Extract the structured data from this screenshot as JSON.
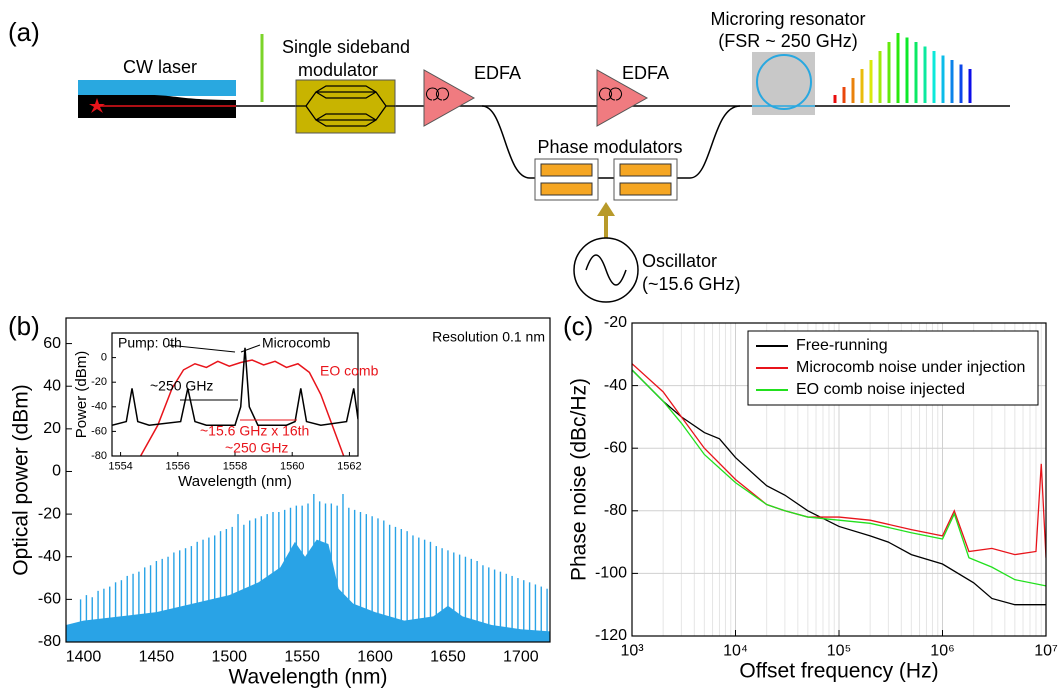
{
  "diagram": {
    "panel_label": "(a)",
    "cw_laser": "CW laser",
    "ssb_lines": [
      "Single sideband",
      "modulator"
    ],
    "edfa_1": "EDFA",
    "edfa_2": "EDFA",
    "microring_lines": [
      "Microring resonator",
      "(FSR ~ 250 GHz)"
    ],
    "phase_modulators": "Phase modulators",
    "oscillator_lines": [
      "Oscillator",
      "(~15.6 GHz)"
    ]
  },
  "chart_data": [
    {
      "type": "comb",
      "panel_label": "(b)",
      "x_label": "Wavelength (nm)",
      "y_label": "Optical power (dBm)",
      "annotations": [
        {
          "text": "Resolution 0.1 nm",
          "color": "#000000"
        }
      ],
      "xlim": [
        1388,
        1720
      ],
      "ylim": [
        -80,
        72
      ],
      "xticks": [
        1400,
        1450,
        1500,
        1550,
        1600,
        1650,
        1700
      ],
      "yticks": [
        -80,
        -60,
        -40,
        -20,
        0,
        20,
        40,
        60
      ],
      "grid": false,
      "series": [
        {
          "style": "stem",
          "color": "#29a3e6",
          "x": [
            1398,
            1402,
            1406,
            1410,
            1414,
            1418,
            1422,
            1426,
            1430,
            1434,
            1438,
            1442,
            1446,
            1450,
            1454,
            1458,
            1462,
            1466,
            1470,
            1474,
            1478,
            1482,
            1486,
            1490,
            1494,
            1498,
            1502,
            1506,
            1510,
            1514,
            1518,
            1522,
            1526,
            1530,
            1534,
            1538,
            1542,
            1546,
            1550,
            1554,
            1558,
            1562,
            1566,
            1570,
            1574,
            1578,
            1582,
            1586,
            1590,
            1594,
            1598,
            1602,
            1606,
            1610,
            1614,
            1618,
            1622,
            1626,
            1630,
            1634,
            1638,
            1642,
            1646,
            1650,
            1654,
            1658,
            1662,
            1666,
            1670,
            1674,
            1678,
            1682,
            1686,
            1690,
            1694,
            1698,
            1702,
            1706,
            1710,
            1714,
            1718
          ],
          "values": [
            -60,
            -58,
            -59,
            -56,
            -55,
            -54,
            -52,
            -51,
            -49,
            -48,
            -47,
            -45,
            -44,
            -42,
            -41,
            -40,
            -38,
            -37,
            -36,
            -35,
            -33,
            -32,
            -31,
            -30,
            -28,
            -27,
            -26,
            -20,
            -25,
            -23,
            -22,
            -21,
            -20,
            -19,
            -19,
            -18,
            -17,
            -16,
            -16,
            -15,
            10,
            -14,
            -15,
            -15,
            -16,
            0,
            -17,
            -18,
            -19,
            -20,
            -21,
            -22,
            -23,
            -25,
            -26,
            -27,
            -28,
            -30,
            -31,
            -32,
            -33,
            -35,
            -36,
            -37,
            -38,
            -39,
            -40,
            -41,
            -42,
            -44,
            -45,
            -46,
            -47,
            -48,
            -49,
            -50,
            -51,
            -52,
            -53,
            -54,
            -55
          ]
        },
        {
          "style": "area",
          "color": "#29a3e6",
          "x": [
            1388,
            1400,
            1450,
            1500,
            1520,
            1535,
            1545,
            1552,
            1560,
            1568,
            1575,
            1585,
            1600,
            1620,
            1640,
            1650,
            1660,
            1680,
            1700,
            1720
          ],
          "values": [
            -72,
            -70,
            -66,
            -58,
            -52,
            -45,
            -33,
            -40,
            -32,
            -34,
            -55,
            -62,
            -66,
            -70,
            -68,
            -63,
            -68,
            -72,
            -74,
            -75
          ]
        }
      ]
    },
    {
      "type": "line",
      "x_label": "Wavelength (nm)",
      "y_label": "Power (dBm)",
      "annotations": [
        {
          "text": "Pump: 0th",
          "color": "#000000"
        },
        {
          "text": "Microcomb",
          "color": "#000000"
        },
        {
          "text": "~250 GHz",
          "color": "#000000"
        },
        {
          "text": "EO comb",
          "color": "#e8141b"
        },
        {
          "text": "~15.6 GHz x 16th",
          "color": "#e8141b"
        },
        {
          "text": "~250 GHz",
          "color": "#e8141b"
        }
      ],
      "xlim": [
        1553.7,
        1562.3
      ],
      "ylim": [
        -80,
        20
      ],
      "xticks": [
        1554,
        1556,
        1558,
        1560,
        1562
      ],
      "yticks": [
        -80,
        -60,
        -40,
        -20,
        0
      ],
      "grid": false,
      "series": [
        {
          "color": "#e8141b",
          "x": [
            1554.7,
            1555.3,
            1555.8,
            1556.2,
            1556.6,
            1557,
            1557.4,
            1557.8,
            1558.2,
            1558.6,
            1559,
            1559.4,
            1559.8,
            1560.2,
            1560.6,
            1561,
            1561.4,
            1561.8
          ],
          "values": [
            -80,
            -55,
            -25,
            -10,
            -5,
            -8,
            -3,
            -7,
            -4,
            -2,
            -6,
            -3,
            -8,
            -5,
            -12,
            -30,
            -55,
            -80
          ]
        },
        {
          "color": "#000000",
          "x": [
            1553.7,
            1554.2,
            1554.4,
            1554.6,
            1555,
            1556.1,
            1556.35,
            1556.6,
            1557,
            1558,
            1558.2,
            1558.35,
            1558.5,
            1558.8,
            1559.8,
            1560.1,
            1560.3,
            1560.5,
            1561,
            1561.9,
            1562.15,
            1562.3
          ],
          "values": [
            -55,
            -52,
            -25,
            -52,
            -55,
            -52,
            -25,
            -52,
            -55,
            -55,
            -40,
            8,
            -40,
            -55,
            -55,
            -52,
            -25,
            -52,
            -55,
            -52,
            -25,
            -50
          ]
        }
      ]
    },
    {
      "type": "line",
      "panel_label": "(c)",
      "x_label": "Offset frequency (Hz)",
      "y_label": "Phase noise (dBc/Hz)",
      "log_x": true,
      "grid": true,
      "legend": "upper right",
      "xlim": [
        1000,
        10000000
      ],
      "ylim": [
        -120,
        -20
      ],
      "xticks": [
        {
          "value": 1000,
          "label": "10³"
        },
        {
          "value": 10000,
          "label": "10⁴"
        },
        {
          "value": 100000,
          "label": "10⁵"
        },
        {
          "value": 1000000,
          "label": "10⁶"
        },
        {
          "value": 10000000,
          "label": "10⁷"
        }
      ],
      "yticks": [
        -120,
        -100,
        -80,
        -60,
        -40,
        -20
      ],
      "series": [
        {
          "name": "Free-running",
          "color": "#000000",
          "x": [
            1000,
            2000,
            3000,
            5000,
            7000,
            10000,
            20000,
            30000,
            50000,
            100000,
            200000,
            300000,
            500000,
            1000000,
            2000000,
            3000000,
            5000000,
            10000000
          ],
          "values": [
            -35,
            -45,
            -50,
            -55,
            -57,
            -63,
            -72,
            -75,
            -80,
            -85,
            -88,
            -90,
            -94,
            -97,
            -103,
            -108,
            -110,
            -110
          ]
        },
        {
          "name": "Microcomb noise under injection",
          "color": "#e8141b",
          "x": [
            1000,
            2000,
            3000,
            5000,
            10000,
            20000,
            30000,
            50000,
            100000,
            200000,
            500000,
            1000000,
            1300000,
            1800000,
            3000000,
            5000000,
            8000000,
            9000000,
            10000000
          ],
          "values": [
            -33,
            -42,
            -50,
            -60,
            -70,
            -78,
            -80,
            -82,
            -82,
            -83,
            -86,
            -88,
            -80,
            -93,
            -92,
            -94,
            -93,
            -65,
            -95
          ]
        },
        {
          "name": "EO comb noise injected",
          "color": "#22e01e",
          "x": [
            1000,
            2000,
            3000,
            5000,
            10000,
            20000,
            30000,
            50000,
            100000,
            200000,
            500000,
            1000000,
            1300000,
            1800000,
            3000000,
            5000000,
            10000000
          ],
          "values": [
            -35,
            -45,
            -52,
            -62,
            -71,
            -78,
            -80,
            -82,
            -83,
            -84,
            -87,
            -89,
            -81,
            -95,
            -98,
            -102,
            -104
          ]
        }
      ]
    }
  ]
}
